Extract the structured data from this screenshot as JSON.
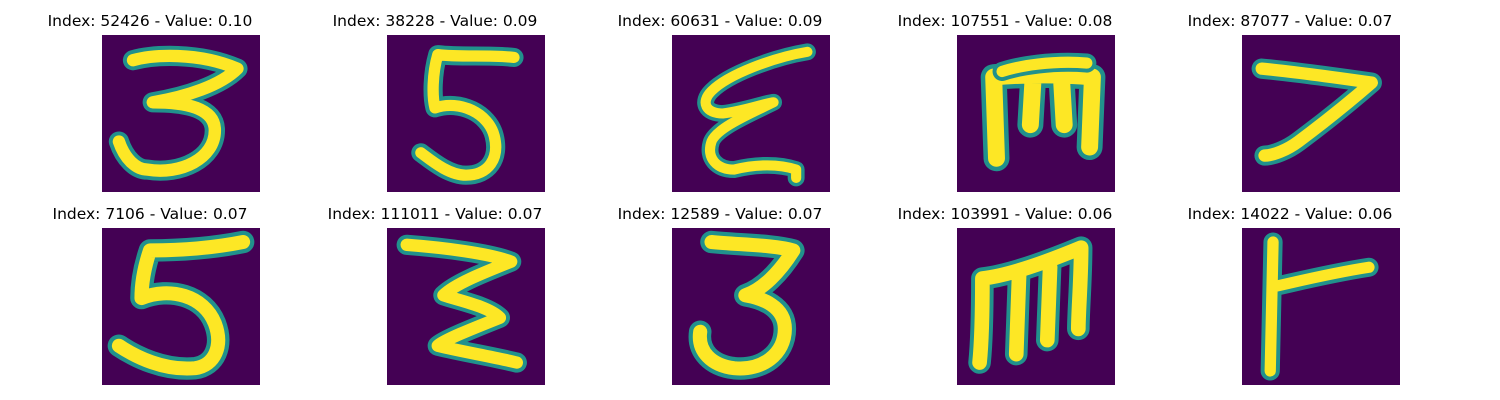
{
  "colors": {
    "background": "#440154",
    "halo": "#21918c",
    "halo_mid": "#5ec962",
    "core": "#fde725"
  },
  "panels": [
    {
      "title": "Index: 52426 - Value: 0.10",
      "glyph": "3-like"
    },
    {
      "title": "Index: 38228 - Value: 0.09",
      "glyph": "5-like"
    },
    {
      "title": "Index: 60631 - Value: 0.09",
      "glyph": "epsilon-like"
    },
    {
      "title": "Index: 107551 - Value: 0.08",
      "glyph": "rotated-m"
    },
    {
      "title": "Index: 87077 - Value: 0.07",
      "glyph": "7-like"
    },
    {
      "title": "Index: 7106 - Value: 0.07",
      "glyph": "5-like"
    },
    {
      "title": "Index: 111011 - Value: 0.07",
      "glyph": "3-like"
    },
    {
      "title": "Index: 12589 - Value: 0.07",
      "glyph": "3-like"
    },
    {
      "title": "Index: 103991 - Value: 0.06",
      "glyph": "m-like"
    },
    {
      "title": "Index: 14022 - Value: 0.06",
      "glyph": "t-like"
    }
  ]
}
